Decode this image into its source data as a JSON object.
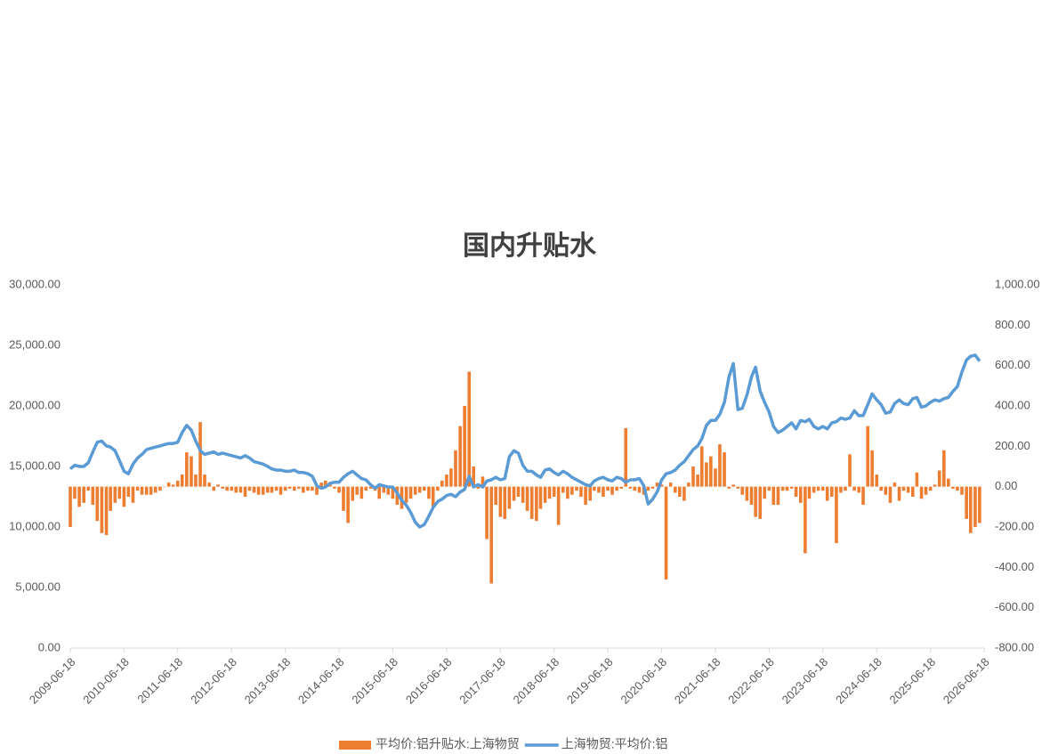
{
  "chart_data": {
    "type": "bar-line",
    "title": "国内升贴水",
    "x": [
      "2009-06-18",
      "2009-07-18",
      "2009-08-18",
      "2009-09-18",
      "2009-10-18",
      "2009-11-18",
      "2009-12-18",
      "2010-01-18",
      "2010-02-18",
      "2010-03-18",
      "2010-04-18",
      "2010-05-18",
      "2010-06-18",
      "2010-07-18",
      "2010-08-18",
      "2010-09-18",
      "2010-10-18",
      "2010-11-18",
      "2010-12-18",
      "2011-01-18",
      "2011-02-18",
      "2011-03-18",
      "2011-04-18",
      "2011-05-18",
      "2011-06-18",
      "2011-07-18",
      "2011-08-18",
      "2011-09-18",
      "2011-10-18",
      "2011-11-18",
      "2011-12-18",
      "2012-01-18",
      "2012-02-18",
      "2012-03-18",
      "2012-04-18",
      "2012-05-18",
      "2012-06-18",
      "2012-07-18",
      "2012-08-18",
      "2012-09-18",
      "2012-10-18",
      "2012-11-18",
      "2012-12-18",
      "2013-01-18",
      "2013-02-18",
      "2013-03-18",
      "2013-04-18",
      "2013-05-18",
      "2013-06-18",
      "2013-07-18",
      "2013-08-18",
      "2013-09-18",
      "2013-10-18",
      "2013-11-18",
      "2013-12-18",
      "2014-01-18",
      "2014-02-18",
      "2014-03-18",
      "2014-04-18",
      "2014-05-18",
      "2014-06-18",
      "2014-07-18",
      "2014-08-18",
      "2014-09-18",
      "2014-10-18",
      "2014-11-18",
      "2014-12-18",
      "2015-01-18",
      "2015-02-18",
      "2015-03-18",
      "2015-04-18",
      "2015-05-18",
      "2015-06-18",
      "2015-07-18",
      "2015-08-18",
      "2015-09-18",
      "2015-10-18",
      "2015-11-18",
      "2015-12-18",
      "2016-01-18",
      "2016-02-18",
      "2016-03-18",
      "2016-04-18",
      "2016-05-18",
      "2016-06-18",
      "2016-07-18",
      "2016-08-18",
      "2016-09-18",
      "2016-10-18",
      "2016-11-18",
      "2016-12-18",
      "2017-01-18",
      "2017-02-18",
      "2017-03-18",
      "2017-04-18",
      "2017-05-18",
      "2017-06-18",
      "2017-07-18",
      "2017-08-18",
      "2017-09-18",
      "2017-10-18",
      "2017-11-18",
      "2017-12-18",
      "2018-01-18",
      "2018-02-18",
      "2018-03-18",
      "2018-04-18",
      "2018-05-18",
      "2018-06-18",
      "2018-07-18",
      "2018-08-18",
      "2018-09-18",
      "2018-10-18",
      "2018-11-18",
      "2018-12-18",
      "2019-01-18",
      "2019-02-18",
      "2019-03-18",
      "2019-04-18",
      "2019-05-18",
      "2019-06-18",
      "2019-07-18",
      "2019-08-18",
      "2019-09-18",
      "2019-10-18",
      "2019-11-18",
      "2019-12-18",
      "2020-01-18",
      "2020-02-18",
      "2020-03-18",
      "2020-04-18",
      "2020-05-18",
      "2020-06-18",
      "2020-07-18",
      "2020-08-18",
      "2020-09-18",
      "2020-10-18",
      "2020-11-18",
      "2020-12-18",
      "2021-01-18",
      "2021-02-18",
      "2021-03-18",
      "2021-04-18",
      "2021-05-18",
      "2021-06-18",
      "2021-07-18",
      "2021-08-18",
      "2021-09-18",
      "2021-10-18",
      "2021-11-18",
      "2021-12-18",
      "2022-01-18",
      "2022-02-18",
      "2022-03-18",
      "2022-04-18",
      "2022-05-18",
      "2022-06-18",
      "2022-07-18",
      "2022-08-18",
      "2022-09-18",
      "2022-10-18",
      "2022-11-18",
      "2022-12-18",
      "2023-01-18",
      "2023-02-18",
      "2023-03-18",
      "2023-04-18",
      "2023-05-18",
      "2023-06-18",
      "2023-07-18",
      "2023-08-18",
      "2023-09-18",
      "2023-10-18",
      "2023-11-18",
      "2023-12-18",
      "2024-01-18",
      "2024-02-18",
      "2024-03-18",
      "2024-04-18",
      "2024-05-18",
      "2024-06-18",
      "2024-07-18",
      "2024-08-18",
      "2024-09-18",
      "2024-10-18",
      "2024-11-18",
      "2024-12-18",
      "2025-01-18",
      "2025-02-18",
      "2025-03-18",
      "2025-04-18",
      "2025-05-18",
      "2025-06-18",
      "2025-07-18",
      "2025-08-18",
      "2025-09-18",
      "2025-10-18",
      "2025-11-18",
      "2025-12-18",
      "2026-01-18",
      "2026-02-18",
      "2026-03-18",
      "2026-04-18",
      "2026-05-18"
    ],
    "series": [
      {
        "name": "平均价:铝升贴水:上海物贸",
        "type": "bar",
        "axis": "y2",
        "color": "#ed7d31",
        "values": [
          -200,
          -60,
          -100,
          -80,
          -20,
          -90,
          -170,
          -230,
          -240,
          -120,
          -80,
          -60,
          -100,
          -50,
          -80,
          -20,
          -40,
          -40,
          -40,
          -30,
          -20,
          0,
          20,
          10,
          30,
          60,
          170,
          150,
          60,
          320,
          60,
          20,
          -20,
          10,
          -10,
          -20,
          -20,
          -30,
          -30,
          -50,
          -20,
          -30,
          -40,
          -40,
          -30,
          -30,
          -20,
          -40,
          -20,
          -10,
          -20,
          -10,
          -30,
          -20,
          -20,
          -40,
          20,
          30,
          10,
          -10,
          -30,
          -120,
          -180,
          -70,
          -40,
          -60,
          -20,
          -10,
          -20,
          -60,
          -30,
          -40,
          -60,
          -90,
          -110,
          -80,
          -60,
          -40,
          -30,
          -20,
          -60,
          -100,
          -20,
          30,
          60,
          90,
          180,
          300,
          400,
          570,
          100,
          -10,
          50,
          -260,
          -480,
          -90,
          -150,
          -160,
          -110,
          -70,
          -50,
          -80,
          -120,
          -160,
          -170,
          -110,
          -80,
          -60,
          -50,
          -190,
          -30,
          -60,
          -40,
          -20,
          -50,
          -90,
          -70,
          -20,
          -30,
          -50,
          -20,
          -40,
          -20,
          -10,
          290,
          -10,
          -20,
          -30,
          -40,
          -20,
          -10,
          20,
          10,
          -460,
          20,
          -30,
          -50,
          -70,
          20,
          100,
          60,
          200,
          120,
          150,
          90,
          210,
          170,
          -10,
          10,
          -10,
          -40,
          -70,
          -90,
          -150,
          -160,
          -60,
          -20,
          -90,
          -90,
          -20,
          -20,
          -10,
          -50,
          -80,
          -330,
          -60,
          -30,
          -20,
          -20,
          -70,
          -50,
          -280,
          -30,
          -20,
          160,
          -20,
          -30,
          -90,
          300,
          180,
          60,
          -20,
          -40,
          -80,
          20,
          -70,
          -20,
          -30,
          -50,
          70,
          -60,
          -40,
          -20,
          10,
          80,
          180,
          40,
          -10,
          -20,
          -40,
          -160,
          -230,
          -200,
          -180
        ]
      },
      {
        "name": "上海物贸:平均价:铝",
        "type": "line",
        "axis": "y",
        "color": "#5b9bd5",
        "values": [
          14800,
          15100,
          15000,
          15000,
          15300,
          16200,
          17000,
          17100,
          16700,
          16600,
          16300,
          15500,
          14600,
          14400,
          15200,
          15700,
          16000,
          16400,
          16500,
          16600,
          16700,
          16800,
          16900,
          16900,
          17000,
          17800,
          18400,
          18000,
          17100,
          16300,
          16000,
          16100,
          16200,
          16000,
          16100,
          16000,
          15900,
          15800,
          15700,
          15900,
          15700,
          15400,
          15300,
          15200,
          15000,
          14800,
          14700,
          14700,
          14600,
          14600,
          14700,
          14500,
          14500,
          14400,
          14200,
          13400,
          13200,
          13300,
          13600,
          13700,
          13700,
          14100,
          14400,
          14600,
          14300,
          14000,
          13900,
          13500,
          13200,
          13500,
          13400,
          13300,
          13300,
          12800,
          12200,
          11800,
          11200,
          10400,
          10000,
          10200,
          10900,
          11600,
          12100,
          12300,
          12600,
          12700,
          12500,
          12900,
          13100,
          14200,
          13300,
          13500,
          13300,
          13800,
          13900,
          14100,
          13900,
          14000,
          15800,
          16300,
          16100,
          15100,
          14600,
          14600,
          14300,
          14100,
          14700,
          14800,
          14500,
          14300,
          14600,
          14400,
          14100,
          13900,
          13700,
          13500,
          13400,
          13800,
          14000,
          14100,
          13900,
          13800,
          14100,
          14000,
          13700,
          13900,
          13900,
          14000,
          13400,
          11900,
          12300,
          12900,
          13900,
          14400,
          14500,
          14700,
          15100,
          15400,
          15900,
          16400,
          16700,
          17300,
          18400,
          18800,
          18800,
          19300,
          20300,
          22400,
          23500,
          19700,
          19800,
          20900,
          22400,
          23200,
          21200,
          20300,
          19500,
          18300,
          17800,
          18000,
          18300,
          18600,
          18100,
          18800,
          18700,
          18900,
          18300,
          18100,
          18300,
          18100,
          18600,
          18700,
          19000,
          18900,
          19000,
          19600,
          19200,
          19200,
          20100,
          21000,
          20500,
          20100,
          19400,
          19500,
          20200,
          20500,
          20200,
          20100,
          20600,
          20700,
          19900,
          20000,
          20300,
          20500,
          20400,
          20600,
          20700,
          21200,
          21600,
          22800,
          23800,
          24100,
          24200,
          23700
        ]
      }
    ],
    "xlim": [
      "2009-06-18",
      "2026-06-18"
    ],
    "xticks": [
      "2009-06-18",
      "2010-06-18",
      "2011-06-18",
      "2012-06-18",
      "2013-06-18",
      "2014-06-18",
      "2015-06-18",
      "2016-06-18",
      "2017-06-18",
      "2018-06-18",
      "2019-06-18",
      "2020-06-18",
      "2021-06-18",
      "2022-06-18",
      "2023-06-18",
      "2024-06-18",
      "2025-06-18",
      "2026-06-18"
    ],
    "ylim": [
      0,
      30000
    ],
    "yticks": [
      {
        "value": 0,
        "label": "0.00"
      },
      {
        "value": 5000,
        "label": "5,000.00"
      },
      {
        "value": 10000,
        "label": "10,000.00"
      },
      {
        "value": 15000,
        "label": "15,000.00"
      },
      {
        "value": 20000,
        "label": "20,000.00"
      },
      {
        "value": 25000,
        "label": "25,000.00"
      },
      {
        "value": 30000,
        "label": "30,000.00"
      }
    ],
    "y2lim": [
      -800,
      1000
    ],
    "y2ticks": [
      {
        "value": -800,
        "label": "-800.00"
      },
      {
        "value": -600,
        "label": "-600.00"
      },
      {
        "value": -400,
        "label": "-400.00"
      },
      {
        "value": -200,
        "label": "-200.00"
      },
      {
        "value": 0,
        "label": "0.00"
      },
      {
        "value": 200,
        "label": "200.00"
      },
      {
        "value": 400,
        "label": "400.00"
      },
      {
        "value": 600,
        "label": "600.00"
      },
      {
        "value": 800,
        "label": "800.00"
      },
      {
        "value": 1000,
        "label": "1,000.00"
      }
    ],
    "legend": "bottom"
  }
}
